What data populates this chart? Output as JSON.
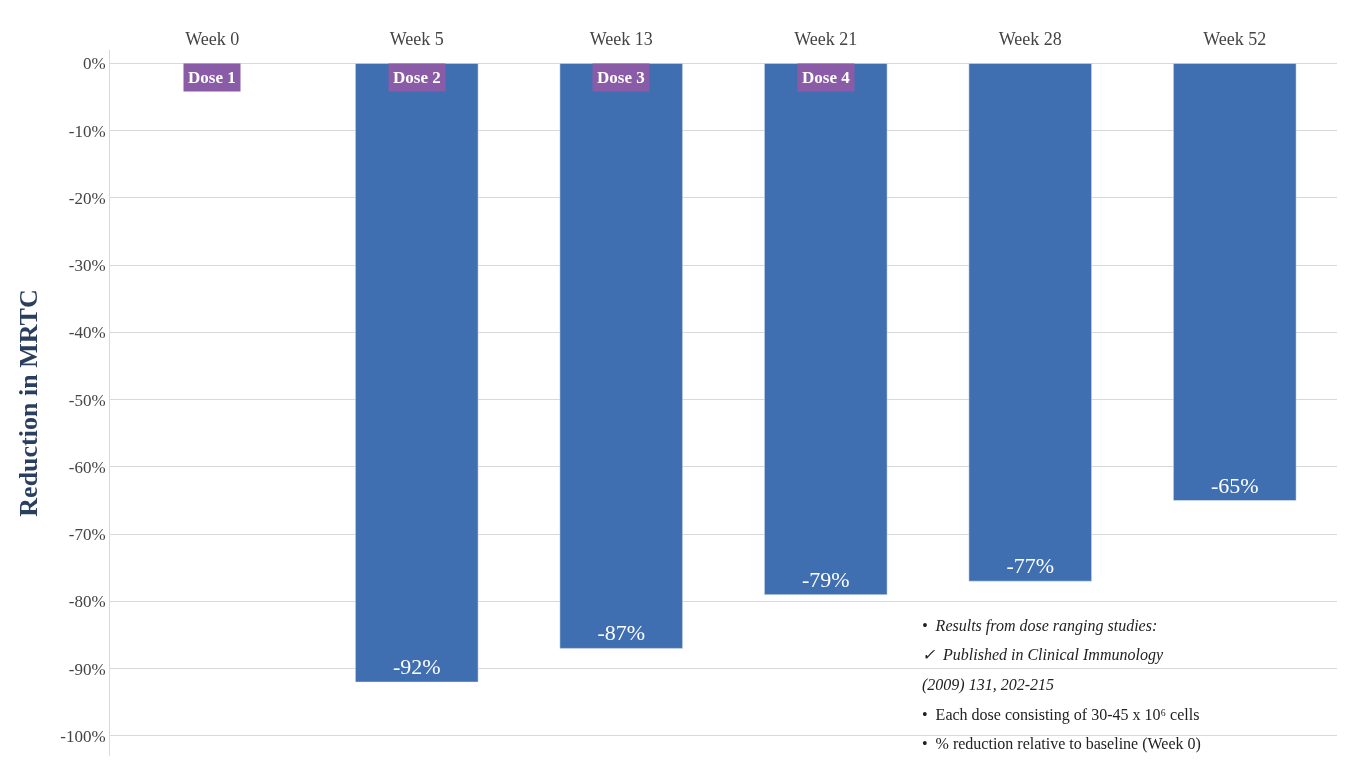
{
  "chart_data": {
    "type": "bar",
    "ylabel": "Reduction in MRTC",
    "categories": [
      "Week 0",
      "Week 5",
      "Week 13",
      "Week 21",
      "Week 28",
      "Week 52"
    ],
    "values": [
      null,
      -92,
      -87,
      -79,
      -77,
      -65
    ],
    "value_labels": [
      null,
      "-92%",
      "-87%",
      "-79%",
      "-77%",
      "-65%"
    ],
    "color": "#3f6fb0",
    "ylim": [
      -103,
      2
    ],
    "yticks": [
      {
        "value": 0,
        "label": "0%"
      },
      {
        "value": -10,
        "label": "-10%"
      },
      {
        "value": -20,
        "label": "-20%"
      },
      {
        "value": -30,
        "label": "-30%"
      },
      {
        "value": -40,
        "label": "-40%"
      },
      {
        "value": -50,
        "label": "-50%"
      },
      {
        "value": -60,
        "label": "-60%"
      },
      {
        "value": -70,
        "label": "-70%"
      },
      {
        "value": -80,
        "label": "-80%"
      },
      {
        "value": -90,
        "label": "-90%"
      },
      {
        "value": -100,
        "label": "-100%"
      }
    ],
    "grid": "y",
    "annotations": [
      "Dose 1",
      "Dose 2",
      "Dose 3",
      "Dose 4",
      "•  Results from dose ranging studies:",
      "✓  Published in Clinical Immunology",
      "(2009) 131, 202-215",
      "•  Each dose consisting of 30-45 x 10⁶ cells",
      "•  % reduction relative to baseline (Week 0)"
    ]
  }
}
